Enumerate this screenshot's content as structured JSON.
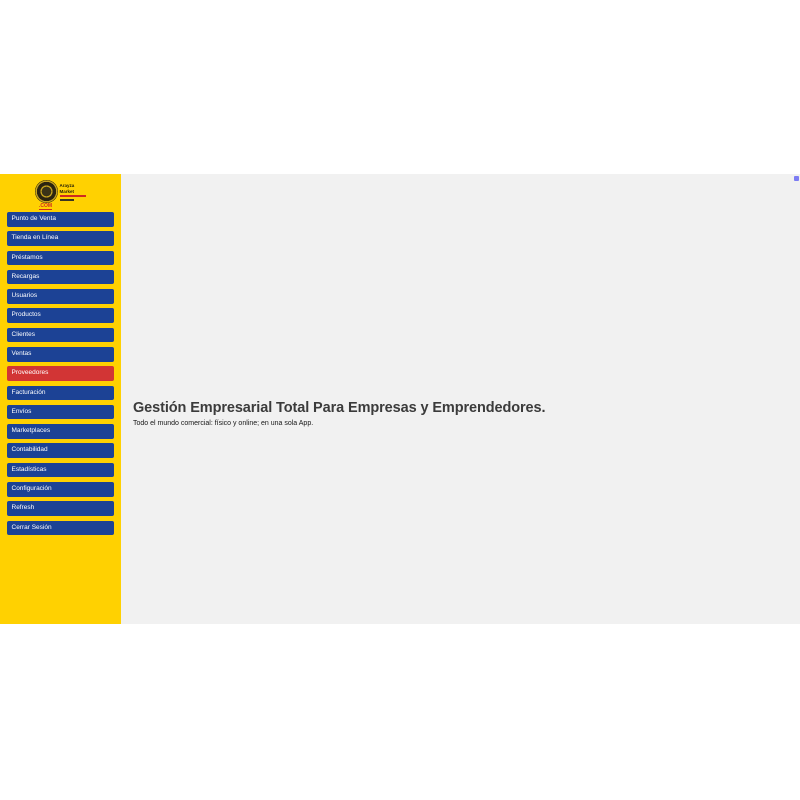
{
  "colors": {
    "sidebar-bg": "#ffd101",
    "item-bg": "#1c4295",
    "active-bg": "#d23535",
    "main-bg": "#f1f1f1"
  },
  "brand": {
    "line1": "Arayza",
    "line2": "Market",
    "suffix": ".COM"
  },
  "sidebar": {
    "items": [
      {
        "label": "Punto de Venta",
        "active": false
      },
      {
        "label": "Tienda en Línea",
        "active": false
      },
      {
        "label": "Préstamos",
        "active": false
      },
      {
        "label": "Recargas",
        "active": false
      },
      {
        "label": "Usuarios",
        "active": false
      },
      {
        "label": "Productos",
        "active": false
      },
      {
        "label": "Clientes",
        "active": false
      },
      {
        "label": "Ventas",
        "active": false
      },
      {
        "label": "Proveedores",
        "active": true
      },
      {
        "label": "Facturación",
        "active": false
      },
      {
        "label": "Envíos",
        "active": false
      },
      {
        "label": "Marketplaces",
        "active": false
      },
      {
        "label": "Contabilidad",
        "active": false
      },
      {
        "label": "Estadísticas",
        "active": false
      },
      {
        "label": "Configuración",
        "active": false
      },
      {
        "label": "Refresh",
        "active": false
      },
      {
        "label": "Cerrar Sesión",
        "active": false
      }
    ]
  },
  "main": {
    "heading": "Gestión Empresarial Total Para Empresas y Emprendedores.",
    "subheading": "Todo el mundo comercial: físico y online; en una sola App."
  }
}
